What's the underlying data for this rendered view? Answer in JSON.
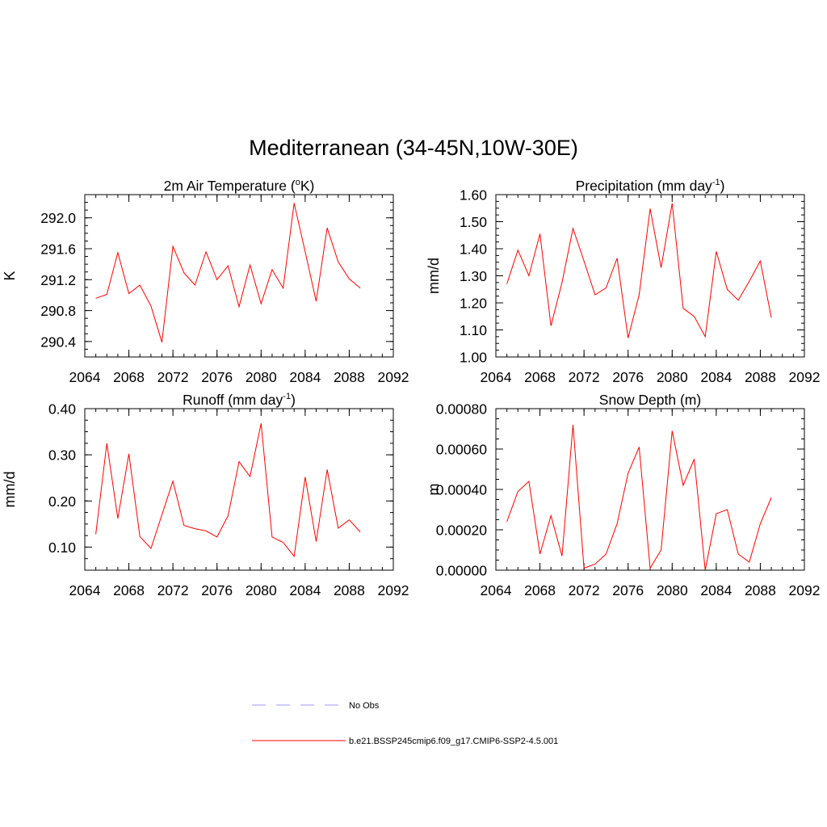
{
  "figure": {
    "title": "Mediterranean (34-45N,10W-30E)",
    "line_color": "#ff0000",
    "obs_color": "#9999ff",
    "axis_color": "#000000"
  },
  "legend": {
    "items": [
      {
        "label": "No Obs",
        "style": "dashed",
        "color": "#9999ff"
      },
      {
        "label": "b.e21.BSSP245cmip6.f09_g17.CMIP6-SSP2-4.5.001",
        "style": "solid",
        "color": "#ff0000"
      }
    ]
  },
  "chart_data": [
    {
      "type": "line",
      "title": "2m Air Temperature (°K)",
      "title_parts": [
        "2m Air Temperature (",
        "o",
        "K)"
      ],
      "ylabel": "K",
      "xlim": [
        2064,
        2092
      ],
      "ylim": [
        290.2,
        292.3
      ],
      "xticks": [
        2064,
        2068,
        2072,
        2076,
        2080,
        2084,
        2088,
        2092
      ],
      "xtick_labels": [
        "2064",
        "2068",
        "2072",
        "2076",
        "2080",
        "2084",
        "2088",
        "2092"
      ],
      "yticks": [
        290.4,
        290.8,
        291.2,
        291.6,
        292.0
      ],
      "ytick_labels": [
        "290.4",
        "290.8",
        "291.2",
        "291.6",
        "292.0"
      ],
      "series": [
        {
          "x": [
            2065,
            2066,
            2067,
            2068,
            2069,
            2070,
            2071,
            2072,
            2073,
            2074,
            2075,
            2076,
            2077,
            2078,
            2079,
            2080,
            2081,
            2082,
            2083,
            2084,
            2085,
            2086,
            2087,
            2088,
            2089
          ],
          "y": [
            290.96,
            291.01,
            291.55,
            291.02,
            291.13,
            290.86,
            290.39,
            291.63,
            291.29,
            291.13,
            291.56,
            291.2,
            291.38,
            290.85,
            291.39,
            290.89,
            291.33,
            291.09,
            292.19,
            291.56,
            290.92,
            291.87,
            291.43,
            291.21,
            291.09
          ]
        }
      ]
    },
    {
      "type": "line",
      "title": "Precipitation (mm day-1)",
      "title_parts": [
        "Precipitation (mm day",
        "-1",
        ")"
      ],
      "ylabel": "mm/d",
      "xlim": [
        2064,
        2092
      ],
      "ylim": [
        1.0,
        1.6
      ],
      "xticks": [
        2064,
        2068,
        2072,
        2076,
        2080,
        2084,
        2088,
        2092
      ],
      "xtick_labels": [
        "2064",
        "2068",
        "2072",
        "2076",
        "2080",
        "2084",
        "2088",
        "2092"
      ],
      "yticks": [
        1.0,
        1.1,
        1.2,
        1.3,
        1.4,
        1.5,
        1.6
      ],
      "ytick_labels": [
        "1.00",
        "1.10",
        "1.20",
        "1.30",
        "1.40",
        "1.50",
        "1.60"
      ],
      "series": [
        {
          "x": [
            2065,
            2066,
            2067,
            2068,
            2069,
            2070,
            2071,
            2072,
            2073,
            2074,
            2075,
            2076,
            2077,
            2078,
            2079,
            2080,
            2081,
            2082,
            2083,
            2084,
            2085,
            2086,
            2087,
            2088,
            2089
          ],
          "y": [
            1.27,
            1.395,
            1.3,
            1.455,
            1.115,
            1.275,
            1.475,
            1.355,
            1.23,
            1.255,
            1.365,
            1.07,
            1.23,
            1.548,
            1.33,
            1.568,
            1.18,
            1.15,
            1.075,
            1.39,
            1.25,
            1.21,
            1.28,
            1.355,
            1.145
          ]
        }
      ]
    },
    {
      "type": "line",
      "title": "Runoff (mm day-1)",
      "title_parts": [
        "Runoff (mm day",
        "-1",
        ")"
      ],
      "ylabel": "mm/d",
      "xlim": [
        2064,
        2092
      ],
      "ylim": [
        0.05,
        0.4
      ],
      "xticks": [
        2064,
        2068,
        2072,
        2076,
        2080,
        2084,
        2088,
        2092
      ],
      "xtick_labels": [
        "2064",
        "2068",
        "2072",
        "2076",
        "2080",
        "2084",
        "2088",
        "2092"
      ],
      "yticks": [
        0.1,
        0.2,
        0.3,
        0.4
      ],
      "ytick_labels": [
        "0.10",
        "0.20",
        "0.30",
        "0.40"
      ],
      "series": [
        {
          "x": [
            2065,
            2066,
            2067,
            2068,
            2069,
            2070,
            2071,
            2072,
            2073,
            2074,
            2075,
            2076,
            2077,
            2078,
            2079,
            2080,
            2081,
            2082,
            2083,
            2084,
            2085,
            2086,
            2087,
            2088,
            2089
          ],
          "y": [
            0.128,
            0.325,
            0.162,
            0.302,
            0.123,
            0.097,
            0.17,
            0.243,
            0.147,
            0.14,
            0.135,
            0.122,
            0.168,
            0.285,
            0.253,
            0.368,
            0.122,
            0.11,
            0.08,
            0.252,
            0.112,
            0.268,
            0.141,
            0.159,
            0.133
          ]
        }
      ]
    },
    {
      "type": "line",
      "title": "Snow Depth (m)",
      "title_parts": [
        "Snow Depth (m)"
      ],
      "ylabel": "m",
      "xlim": [
        2064,
        2092
      ],
      "ylim": [
        0.0,
        0.0008
      ],
      "xticks": [
        2064,
        2068,
        2072,
        2076,
        2080,
        2084,
        2088,
        2092
      ],
      "xtick_labels": [
        "2064",
        "2068",
        "2072",
        "2076",
        "2080",
        "2084",
        "2088",
        "2092"
      ],
      "yticks": [
        0.0,
        0.0002,
        0.0004,
        0.0006,
        0.0008
      ],
      "ytick_labels": [
        "0.00000",
        "0.00020",
        "0.00040",
        "0.00060",
        "0.00080"
      ],
      "series": [
        {
          "x": [
            2065,
            2066,
            2067,
            2068,
            2069,
            2070,
            2071,
            2072,
            2073,
            2074,
            2075,
            2076,
            2077,
            2078,
            2079,
            2080,
            2081,
            2082,
            2083,
            2084,
            2085,
            2086,
            2087,
            2088,
            2089
          ],
          "y": [
            0.00024,
            0.00039,
            0.00044,
            8e-05,
            0.00027,
            7e-05,
            0.00072,
            1e-05,
            3e-05,
            8e-05,
            0.00023,
            0.00048,
            0.00061,
            1e-05,
            0.0001,
            0.00069,
            0.00042,
            0.00055,
            0.0,
            0.00028,
            0.0003,
            8e-05,
            4e-05,
            0.00023,
            0.00036
          ]
        }
      ]
    }
  ]
}
